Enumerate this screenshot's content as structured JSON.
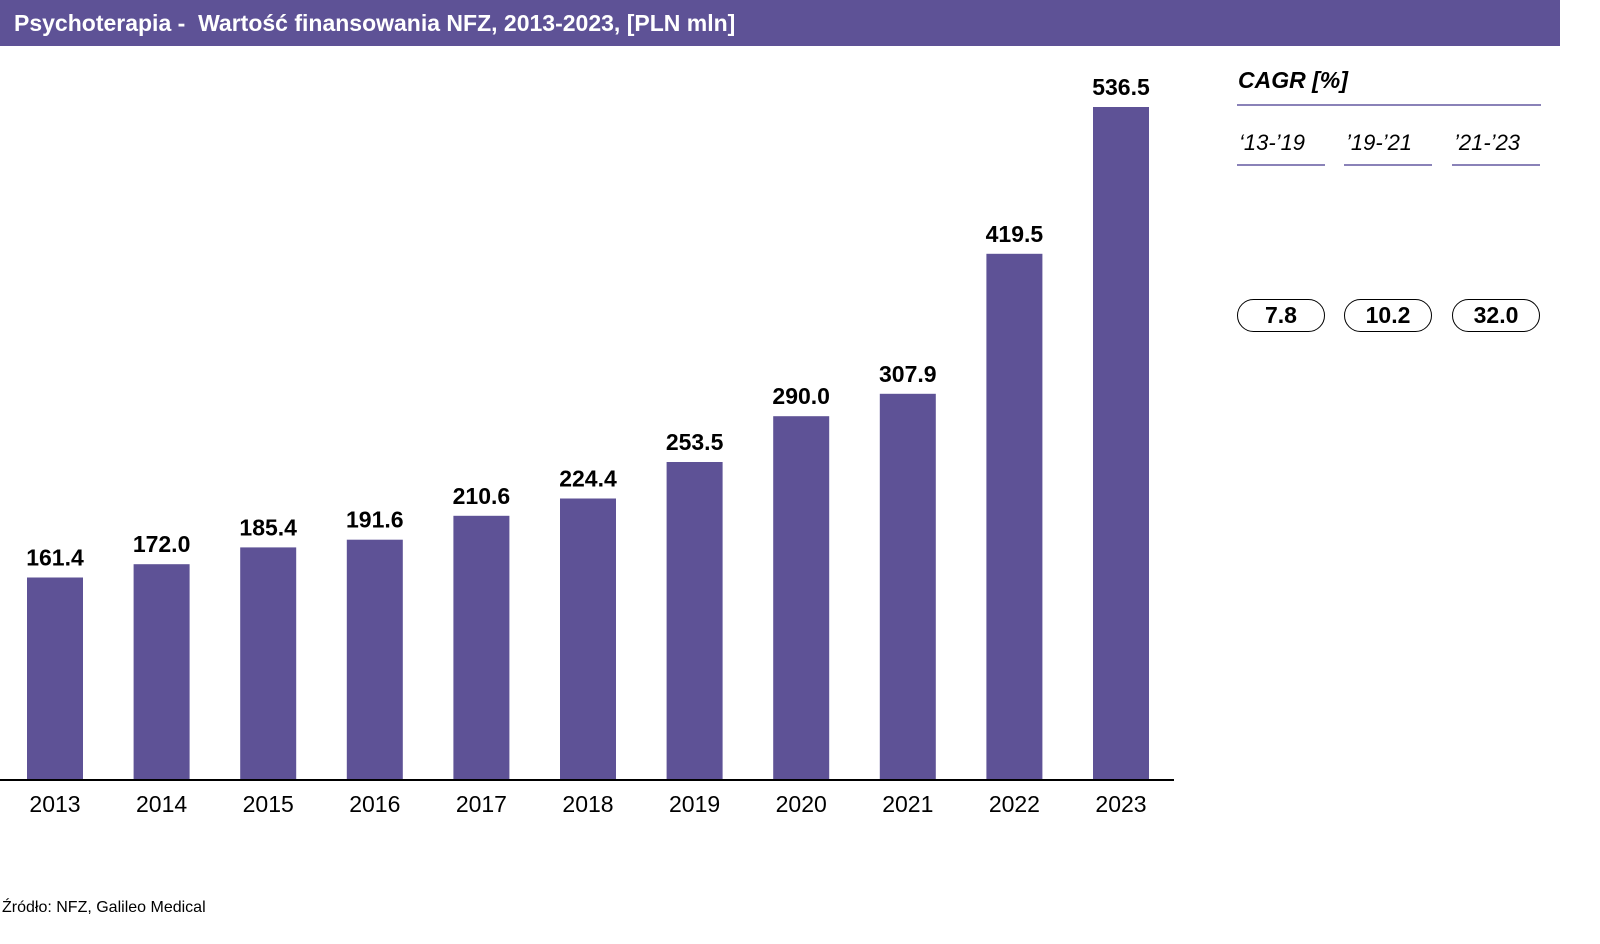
{
  "title": "Psychoterapia -  Wartość finansowania NFZ, 2013-2023, [PLN mln]",
  "colors": {
    "bar": "#5e5296",
    "title_bar_bg": "#5e5296",
    "title_text": "#ffffff",
    "divider": "#8a82b8"
  },
  "chart_data": {
    "type": "bar",
    "title": "Psychoterapia -  Wartość finansowania NFZ, 2013-2023, [PLN mln]",
    "categories": [
      "2013",
      "2014",
      "2015",
      "2016",
      "2017",
      "2018",
      "2019",
      "2020",
      "2021",
      "2022",
      "2023"
    ],
    "values": [
      161.4,
      172.0,
      185.4,
      191.6,
      210.6,
      224.4,
      253.5,
      290.0,
      307.9,
      419.5,
      536.5
    ],
    "value_labels": [
      "161.4",
      "172.0",
      "185.4",
      "191.6",
      "210.6",
      "224.4",
      "253.5",
      "290.0",
      "307.9",
      "419.5",
      "536.5"
    ],
    "xlabel": "",
    "ylabel": "",
    "ylim": [
      0,
      536.5
    ],
    "grid": false,
    "legend": "none"
  },
  "cagr": {
    "title": "CAGR [%]",
    "periods": [
      "‘13-’19",
      "’19-’21",
      "’21-’23"
    ],
    "values": [
      "7.8",
      "10.2",
      "32.0"
    ]
  },
  "source": "Źródło: NFZ, Galileo Medical"
}
